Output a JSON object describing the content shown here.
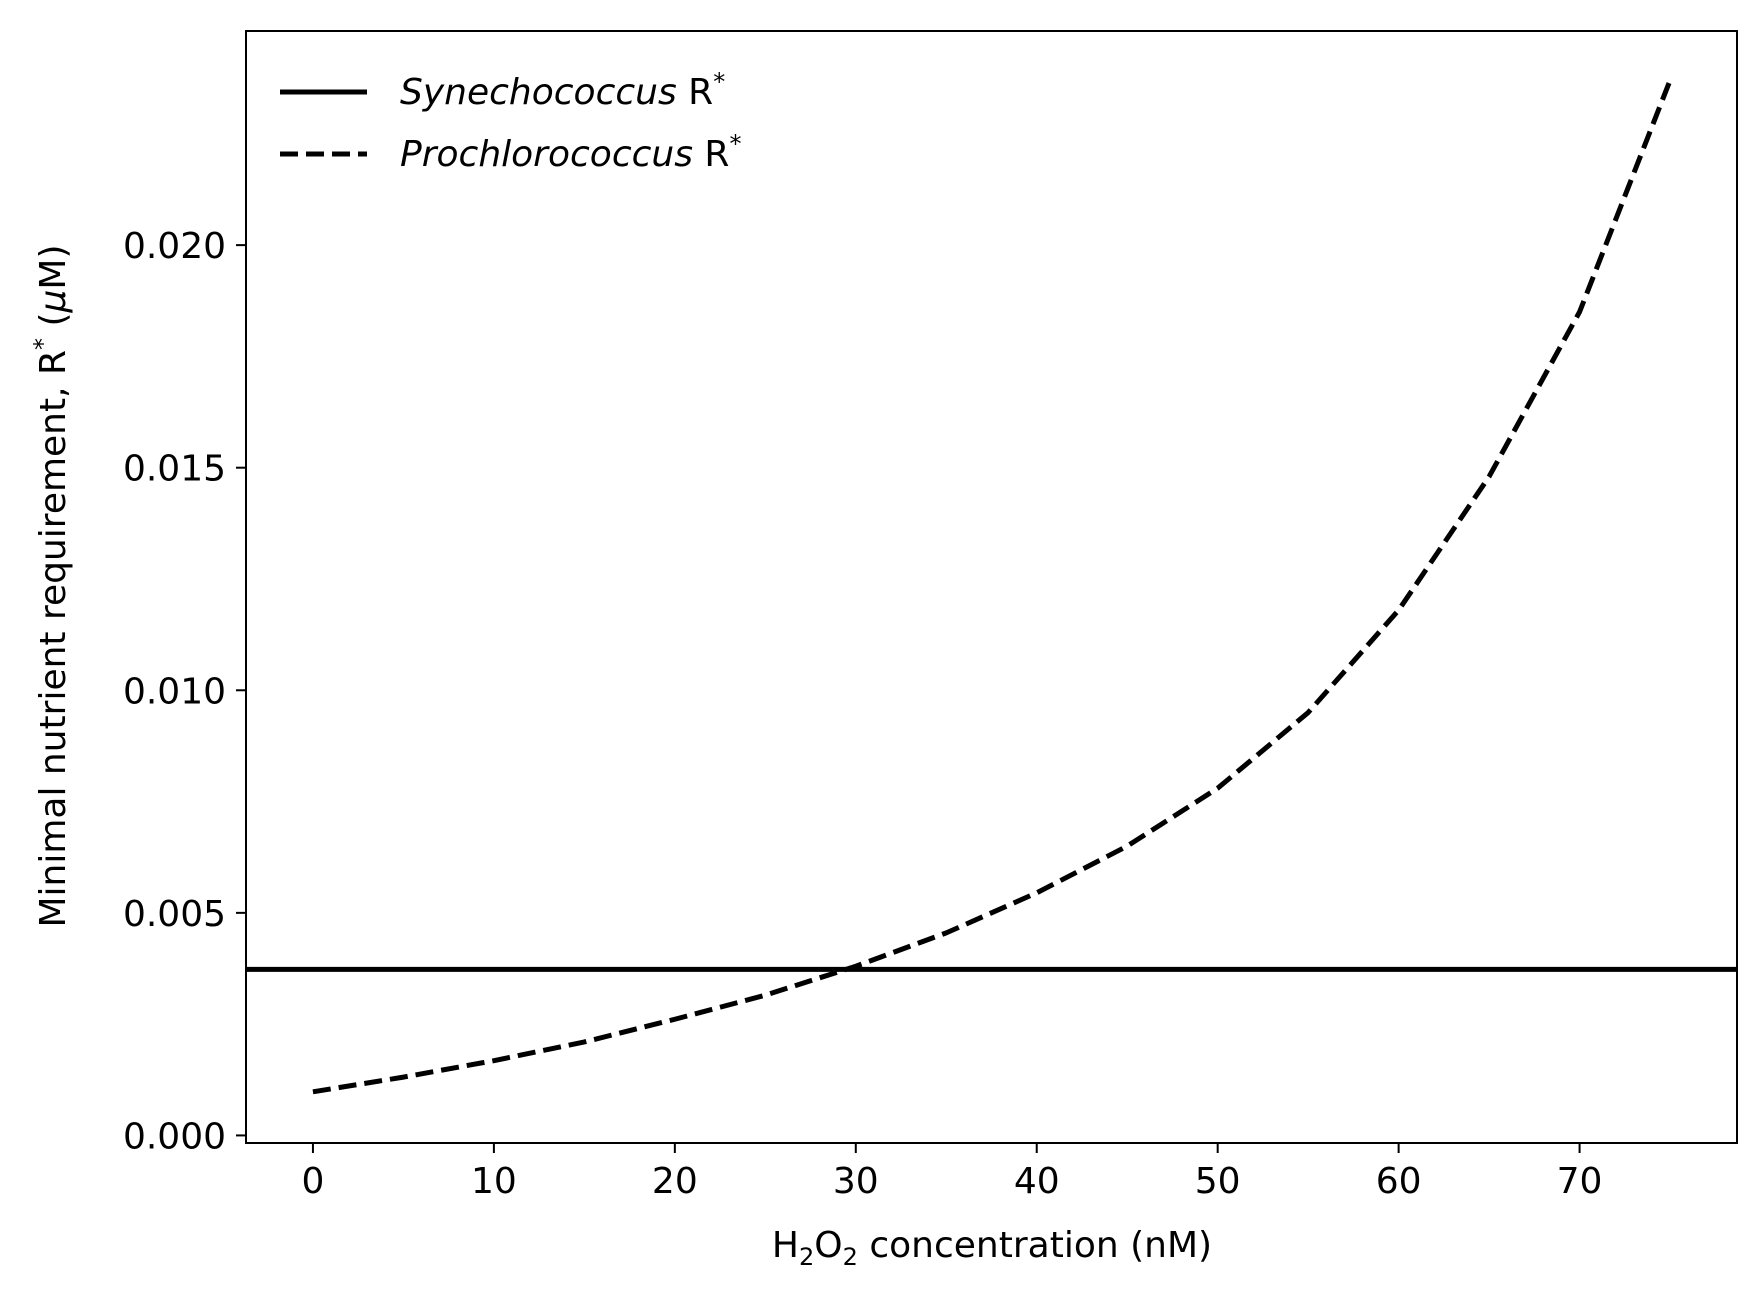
{
  "chart_data": {
    "type": "line",
    "xlabel": {
      "prefix": "H",
      "sub1": "2",
      "mid": "O",
      "sub2": "2",
      "suffix": " concentration (nM)"
    },
    "ylabel": {
      "main": "Minimal nutrient requirement, R",
      "sup": "*",
      "unit_open": " (",
      "unit_mu": "μ",
      "unit_close": "M)"
    },
    "xlim": [
      -3.7,
      78.7
    ],
    "ylim": [
      -0.00017,
      0.02481
    ],
    "xticks": [
      0,
      10,
      20,
      30,
      40,
      50,
      60,
      70
    ],
    "xtick_labels": [
      "0",
      "10",
      "20",
      "30",
      "40",
      "50",
      "60",
      "70"
    ],
    "yticks": [
      0.0,
      0.005,
      0.01,
      0.015,
      0.02
    ],
    "ytick_labels": [
      "0.000",
      "0.005",
      "0.010",
      "0.015",
      "0.020"
    ],
    "grid": false,
    "legend_position": "upper-left",
    "series": [
      {
        "name_italic": "Synechococcus",
        "name_rest": " R",
        "name_sup": "*",
        "style": "solid",
        "color": "#000000",
        "x": [
          -3.7,
          78.7
        ],
        "y": [
          0.00373,
          0.00373
        ]
      },
      {
        "name_italic": "Prochlorococcus",
        "name_rest": " R",
        "name_sup": "*",
        "style": "dashed",
        "color": "#000000",
        "x": [
          0,
          5,
          10,
          15,
          20,
          25,
          30,
          35,
          40,
          45,
          50,
          55,
          60,
          65,
          70,
          75
        ],
        "y": [
          0.00098,
          0.00131,
          0.00168,
          0.0021,
          0.00261,
          0.00315,
          0.0038,
          0.00455,
          0.00545,
          0.0065,
          0.0078,
          0.0095,
          0.0118,
          0.0148,
          0.0185,
          0.0237
        ]
      }
    ]
  }
}
